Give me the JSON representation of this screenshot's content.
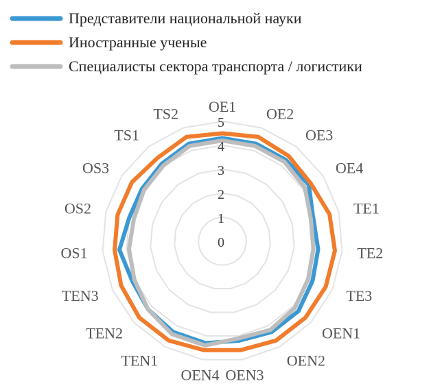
{
  "chart_data": {
    "type": "radar",
    "categories": [
      "OE1",
      "OE2",
      "OE3",
      "OE4",
      "TE1",
      "TE2",
      "TE3",
      "OEN1",
      "OEN2",
      "OEN3",
      "OEN4",
      "TEN1",
      "TEN2",
      "TEN3",
      "OS1",
      "OS2",
      "OS3",
      "TS1",
      "TS2"
    ],
    "series": [
      {
        "name": "Представители национальной науки",
        "color": "#3a98d3",
        "values": [
          4.3,
          4.3,
          4.3,
          4.3,
          3.9,
          4.0,
          4.1,
          4.3,
          4.3,
          4.2,
          4.3,
          4.3,
          4.2,
          4.1,
          4.3,
          4.0,
          4.0,
          4.1,
          4.3
        ]
      },
      {
        "name": "Иностранные ученые",
        "color": "#f07c2c",
        "values": [
          4.5,
          4.6,
          4.5,
          4.4,
          4.6,
          4.7,
          4.7,
          4.7,
          4.7,
          4.6,
          4.6,
          4.7,
          4.7,
          4.6,
          4.5,
          4.5,
          4.5,
          4.4,
          4.6
        ]
      },
      {
        "name": "Специалисты сектора транспорта / логистики",
        "color": "#bdbdbd",
        "values": [
          4.2,
          4.2,
          4.2,
          4.1,
          3.8,
          3.8,
          3.9,
          4.1,
          4.2,
          4.1,
          4.4,
          4.4,
          4.2,
          4.0,
          3.9,
          3.8,
          3.9,
          4.0,
          4.2
        ]
      }
    ],
    "rlim": [
      0,
      5
    ],
    "rticks": [
      0,
      1,
      2,
      3,
      4,
      5
    ],
    "grid": true,
    "legend": "top-left"
  }
}
